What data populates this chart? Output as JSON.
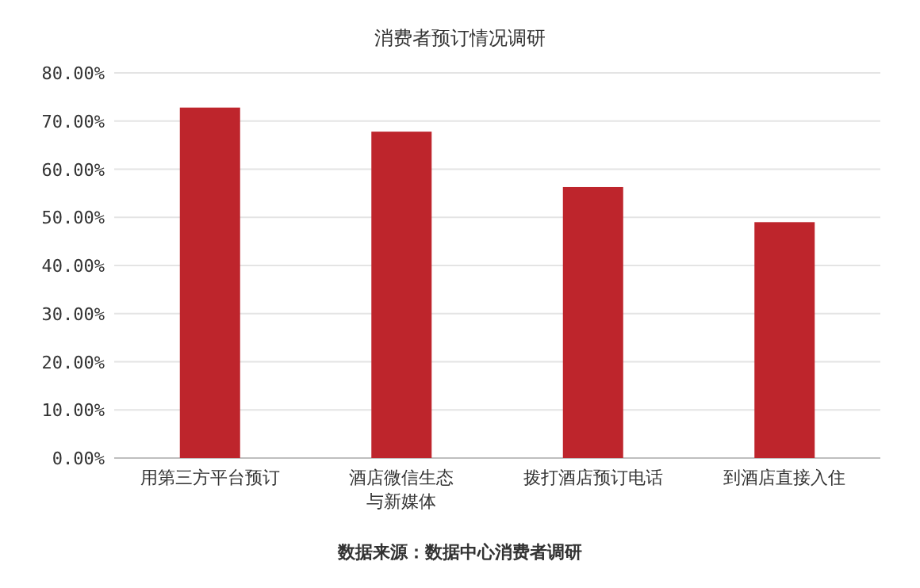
{
  "chart_data": {
    "type": "bar",
    "title": "消费者预订情况调研",
    "categories": [
      "用第三方平台预订",
      "酒店微信生态与新媒体",
      "拨打酒店预订电话",
      "到酒店直接入住"
    ],
    "values": [
      72.8,
      67.8,
      56.3,
      49.0
    ],
    "color": "#be252c",
    "ylim": [
      0,
      80
    ],
    "yticks": [
      {
        "value": 0,
        "label": "0.00%"
      },
      {
        "value": 10,
        "label": "10.00%"
      },
      {
        "value": 20,
        "label": "20.00%"
      },
      {
        "value": 30,
        "label": "30.00%"
      },
      {
        "value": 40,
        "label": "40.00%"
      },
      {
        "value": 50,
        "label": "50.00%"
      },
      {
        "value": 60,
        "label": "60.00%"
      },
      {
        "value": 70,
        "label": "70.00%"
      },
      {
        "value": 80,
        "label": "80.00%"
      }
    ],
    "grid": "y",
    "annotations": [
      "数据来源：数据中心消费者调研"
    ]
  }
}
